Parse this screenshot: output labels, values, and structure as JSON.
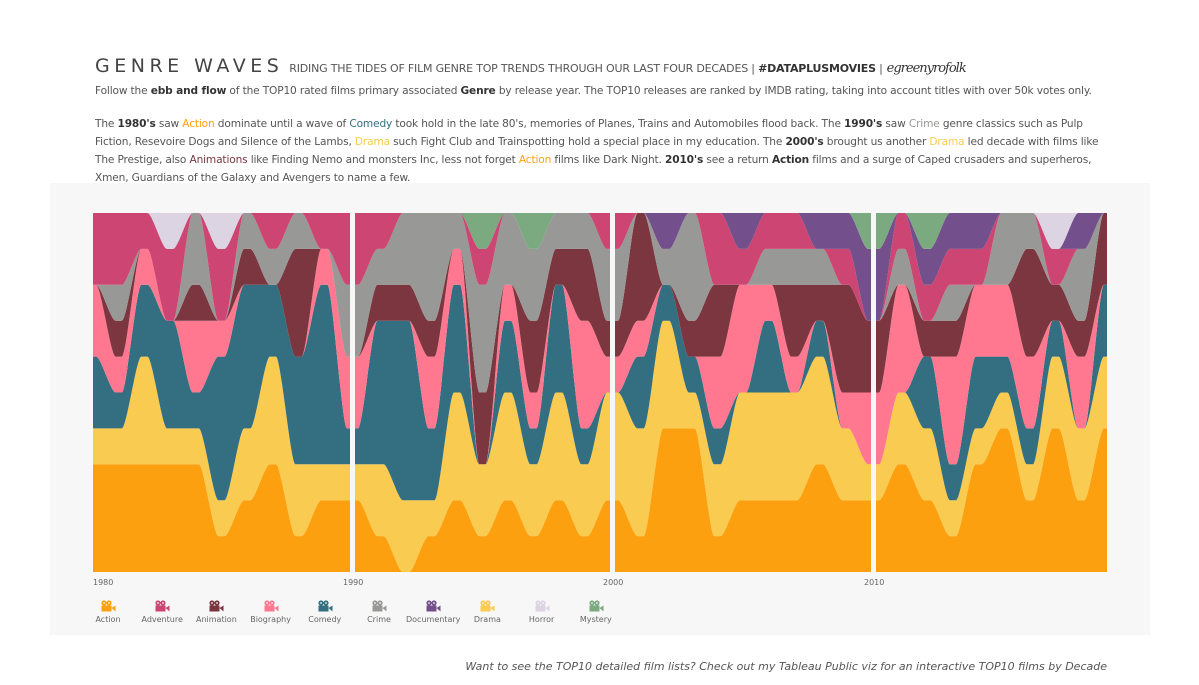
{
  "header": {
    "title": "GENRE WAVES",
    "subtitle": "RIDING THE TIDES OF FILM GENRE TOP TRENDS THROUGH OUR LAST FOUR DECADES |",
    "hashtag": "#DATAPLUSMOVIES",
    "separator": "|",
    "signature": "egreenyrofolk"
  },
  "intro": [
    {
      "text": "Follow the ",
      "style": "plain"
    },
    {
      "text": "ebb and flow",
      "style": "bold"
    },
    {
      "text": " of the TOP10 rated films primary associated ",
      "style": "plain"
    },
    {
      "text": "Genre",
      "style": "bold"
    },
    {
      "text": " by release year. The TOP10 releases are ranked by IMDB rating, taking into account titles with over 50k votes only.",
      "style": "plain"
    }
  ],
  "story": [
    {
      "text": "The ",
      "style": "plain"
    },
    {
      "text": "1980's",
      "style": "bold"
    },
    {
      "text": " saw ",
      "style": "plain"
    },
    {
      "text": "Action",
      "style": "Action"
    },
    {
      "text": " dominate until a wave of ",
      "style": "plain"
    },
    {
      "text": "Comedy",
      "style": "Comedy"
    },
    {
      "text": " took hold in the late 80's, memories of Planes, Trains and Automobiles flood back. The ",
      "style": "plain"
    },
    {
      "text": "1990's",
      "style": "bold"
    },
    {
      "text": " saw ",
      "style": "plain"
    },
    {
      "text": "Crime",
      "style": "Crime"
    },
    {
      "text": " genre classics such as Pulp Fiction, Resevoire Dogs and Silence of the Lambs, ",
      "style": "plain"
    },
    {
      "text": "Drama",
      "style": "Drama"
    },
    {
      "text": " such Fight Club and Trainspotting hold a special place in my education. The ",
      "style": "plain"
    },
    {
      "text": "2000's",
      "style": "bold"
    },
    {
      "text": " brought us another ",
      "style": "plain"
    },
    {
      "text": "Drama",
      "style": "Drama"
    },
    {
      "text": " led decade with films like The Prestige, also ",
      "style": "plain"
    },
    {
      "text": "Animations",
      "style": "Animation"
    },
    {
      "text": " like Finding Nemo and monsters Inc, less not forget ",
      "style": "plain"
    },
    {
      "text": "Action",
      "style": "Action"
    },
    {
      "text": " films like Dark Night. ",
      "style": "plain"
    },
    {
      "text": "2010's",
      "style": "bold"
    },
    {
      "text": " see a return ",
      "style": "plain"
    },
    {
      "text": "Action",
      "style": "bold"
    },
    {
      "text": " films and a surge of Caped crusaders and superheros, Xmen, Guardians of the Galaxy and Avengers to name a few.",
      "style": "plain"
    }
  ],
  "footer": "Want to see the TOP10 detailed film lists? Check out my Tableau Public viz for an interactive TOP10 films by Decade",
  "chart_data": {
    "type": "area",
    "subtype": "stacked wave (count of TOP10 films per genre per year)",
    "x_ticks": [
      "1980",
      "1990",
      "2000",
      "2010"
    ],
    "y_total": 10,
    "genres": [
      "Action",
      "Drama",
      "Comedy",
      "Biography",
      "Animation",
      "Crime",
      "Adventure",
      "Documentary",
      "Horror",
      "Mystery"
    ],
    "legend": [
      "Action",
      "Adventure",
      "Animation",
      "Biography",
      "Comedy",
      "Crime",
      "Documentary",
      "Drama",
      "Horror",
      "Mystery"
    ],
    "legend_icon": "movie-camera-icon",
    "colors": {
      "Action": "#FDA00F",
      "Adventure": "#CD4673",
      "Animation": "#7B363F",
      "Biography": "#FF788F",
      "Comedy": "#336F80",
      "Crime": "#989896",
      "Documentary": "#734F8B",
      "Drama": "#F9CB50",
      "Horror": "#DCD3E3",
      "Mystery": "#7BA980"
    },
    "years": [
      {
        "year": 1980,
        "Action": 3,
        "Drama": 1,
        "Comedy": 2,
        "Biography": 2,
        "Adventure": 2
      },
      {
        "year": 1981,
        "Action": 3,
        "Drama": 1,
        "Comedy": 1,
        "Biography": 1,
        "Animation": 1,
        "Crime": 1,
        "Adventure": 2
      },
      {
        "year": 1982,
        "Action": 3,
        "Drama": 3,
        "Comedy": 2,
        "Biography": 1,
        "Adventure": 1
      },
      {
        "year": 1983,
        "Action": 3,
        "Drama": 1,
        "Comedy": 3,
        "Adventure": 2,
        "Horror": 1
      },
      {
        "year": 1984,
        "Action": 3,
        "Drama": 1,
        "Comedy": 1,
        "Biography": 2,
        "Animation": 1,
        "Crime": 2
      },
      {
        "year": 1985,
        "Action": 1,
        "Drama": 1,
        "Comedy": 4,
        "Biography": 1,
        "Adventure": 2,
        "Horror": 1
      },
      {
        "year": 1986,
        "Action": 2,
        "Drama": 2,
        "Comedy": 4,
        "Animation": 1,
        "Crime": 1
      },
      {
        "year": 1987,
        "Action": 3,
        "Drama": 3,
        "Comedy": 2,
        "Crime": 1,
        "Adventure": 1
      },
      {
        "year": 1988,
        "Action": 1,
        "Drama": 2,
        "Comedy": 3,
        "Animation": 3,
        "Crime": 1
      },
      {
        "year": 1989,
        "Action": 2,
        "Drama": 1,
        "Comedy": 5,
        "Biography": 1,
        "Adventure": 1
      },
      {
        "year": 1990,
        "Action": 2,
        "Drama": 1,
        "Comedy": 1,
        "Biography": 2,
        "Crime": 2,
        "Adventure": 2
      },
      {
        "year": 1991,
        "Action": 1,
        "Drama": 2,
        "Comedy": 4,
        "Animation": 1,
        "Crime": 1,
        "Adventure": 1
      },
      {
        "year": 1992,
        "Action": 0,
        "Drama": 2,
        "Comedy": 5,
        "Animation": 1,
        "Crime": 2
      },
      {
        "year": 1993,
        "Action": 1,
        "Drama": 1,
        "Comedy": 2,
        "Biography": 2,
        "Animation": 1,
        "Crime": 3
      },
      {
        "year": 1994,
        "Action": 2,
        "Drama": 3,
        "Comedy": 3,
        "Biography": 1,
        "Crime": 1
      },
      {
        "year": 1995,
        "Action": 1,
        "Drama": 2,
        "Animation": 2,
        "Crime": 3,
        "Adventure": 1,
        "Mystery": 1
      },
      {
        "year": 1996,
        "Action": 2,
        "Drama": 3,
        "Comedy": 2,
        "Biography": 1,
        "Crime": 2
      },
      {
        "year": 1997,
        "Action": 1,
        "Drama": 2,
        "Comedy": 1,
        "Biography": 1,
        "Animation": 2,
        "Crime": 2,
        "Mystery": 1
      },
      {
        "year": 1998,
        "Action": 2,
        "Drama": 3,
        "Comedy": 3,
        "Animation": 1,
        "Crime": 1
      },
      {
        "year": 1999,
        "Action": 1,
        "Drama": 2,
        "Comedy": 1,
        "Biography": 3,
        "Animation": 2,
        "Crime": 1
      },
      {
        "year": 2000,
        "Action": 2,
        "Drama": 3,
        "Biography": 1,
        "Animation": 1,
        "Crime": 2,
        "Adventure": 1
      },
      {
        "year": 2001,
        "Action": 1,
        "Drama": 3,
        "Comedy": 2,
        "Biography": 1,
        "Animation": 3
      },
      {
        "year": 2002,
        "Action": 4,
        "Drama": 3,
        "Comedy": 1,
        "Crime": 1,
        "Documentary": 1
      },
      {
        "year": 2003,
        "Action": 4,
        "Drama": 1,
        "Comedy": 1,
        "Animation": 1,
        "Crime": 3
      },
      {
        "year": 2004,
        "Action": 1,
        "Drama": 2,
        "Comedy": 1,
        "Biography": 2,
        "Animation": 2,
        "Adventure": 2
      },
      {
        "year": 2005,
        "Action": 2,
        "Drama": 3,
        "Biography": 3,
        "Adventure": 1,
        "Documentary": 1
      },
      {
        "year": 2006,
        "Action": 2,
        "Drama": 3,
        "Comedy": 2,
        "Biography": 1,
        "Crime": 1,
        "Adventure": 1
      },
      {
        "year": 2007,
        "Action": 2,
        "Drama": 3,
        "Biography": 1,
        "Animation": 2,
        "Crime": 1,
        "Adventure": 1
      },
      {
        "year": 2008,
        "Action": 3,
        "Drama": 3,
        "Comedy": 1,
        "Animation": 1,
        "Crime": 1,
        "Documentary": 1
      },
      {
        "year": 2009,
        "Action": 2,
        "Drama": 2,
        "Biography": 1,
        "Animation": 3,
        "Adventure": 1,
        "Documentary": 1
      },
      {
        "year": 2010,
        "Action": 2,
        "Drama": 1,
        "Biography": 2,
        "Animation": 2,
        "Documentary": 2,
        "Mystery": 1
      },
      {
        "year": 2011,
        "Action": 3,
        "Drama": 2,
        "Biography": 3,
        "Crime": 1,
        "Adventure": 1
      },
      {
        "year": 2012,
        "Action": 2,
        "Drama": 2,
        "Comedy": 2,
        "Animation": 1,
        "Adventure": 1,
        "Documentary": 1,
        "Mystery": 1
      },
      {
        "year": 2013,
        "Action": 1,
        "Drama": 1,
        "Comedy": 1,
        "Biography": 3,
        "Animation": 1,
        "Crime": 1,
        "Adventure": 1,
        "Documentary": 1
      },
      {
        "year": 2014,
        "Action": 3,
        "Drama": 1,
        "Comedy": 2,
        "Biography": 2,
        "Adventure": 1,
        "Documentary": 1
      },
      {
        "year": 2015,
        "Action": 4,
        "Drama": 1,
        "Comedy": 1,
        "Biography": 2,
        "Crime": 2
      },
      {
        "year": 2016,
        "Action": 2,
        "Drama": 1,
        "Comedy": 1,
        "Biography": 2,
        "Animation": 3,
        "Crime": 1
      },
      {
        "year": 2017,
        "Action": 4,
        "Drama": 2,
        "Comedy": 1,
        "Animation": 1,
        "Adventure": 1,
        "Horror": 1
      },
      {
        "year": 2018,
        "Action": 2,
        "Drama": 2,
        "Biography": 2,
        "Animation": 1,
        "Crime": 2,
        "Documentary": 1
      },
      {
        "year": 2019,
        "Action": 4,
        "Drama": 2,
        "Comedy": 2,
        "Animation": 2
      }
    ]
  }
}
